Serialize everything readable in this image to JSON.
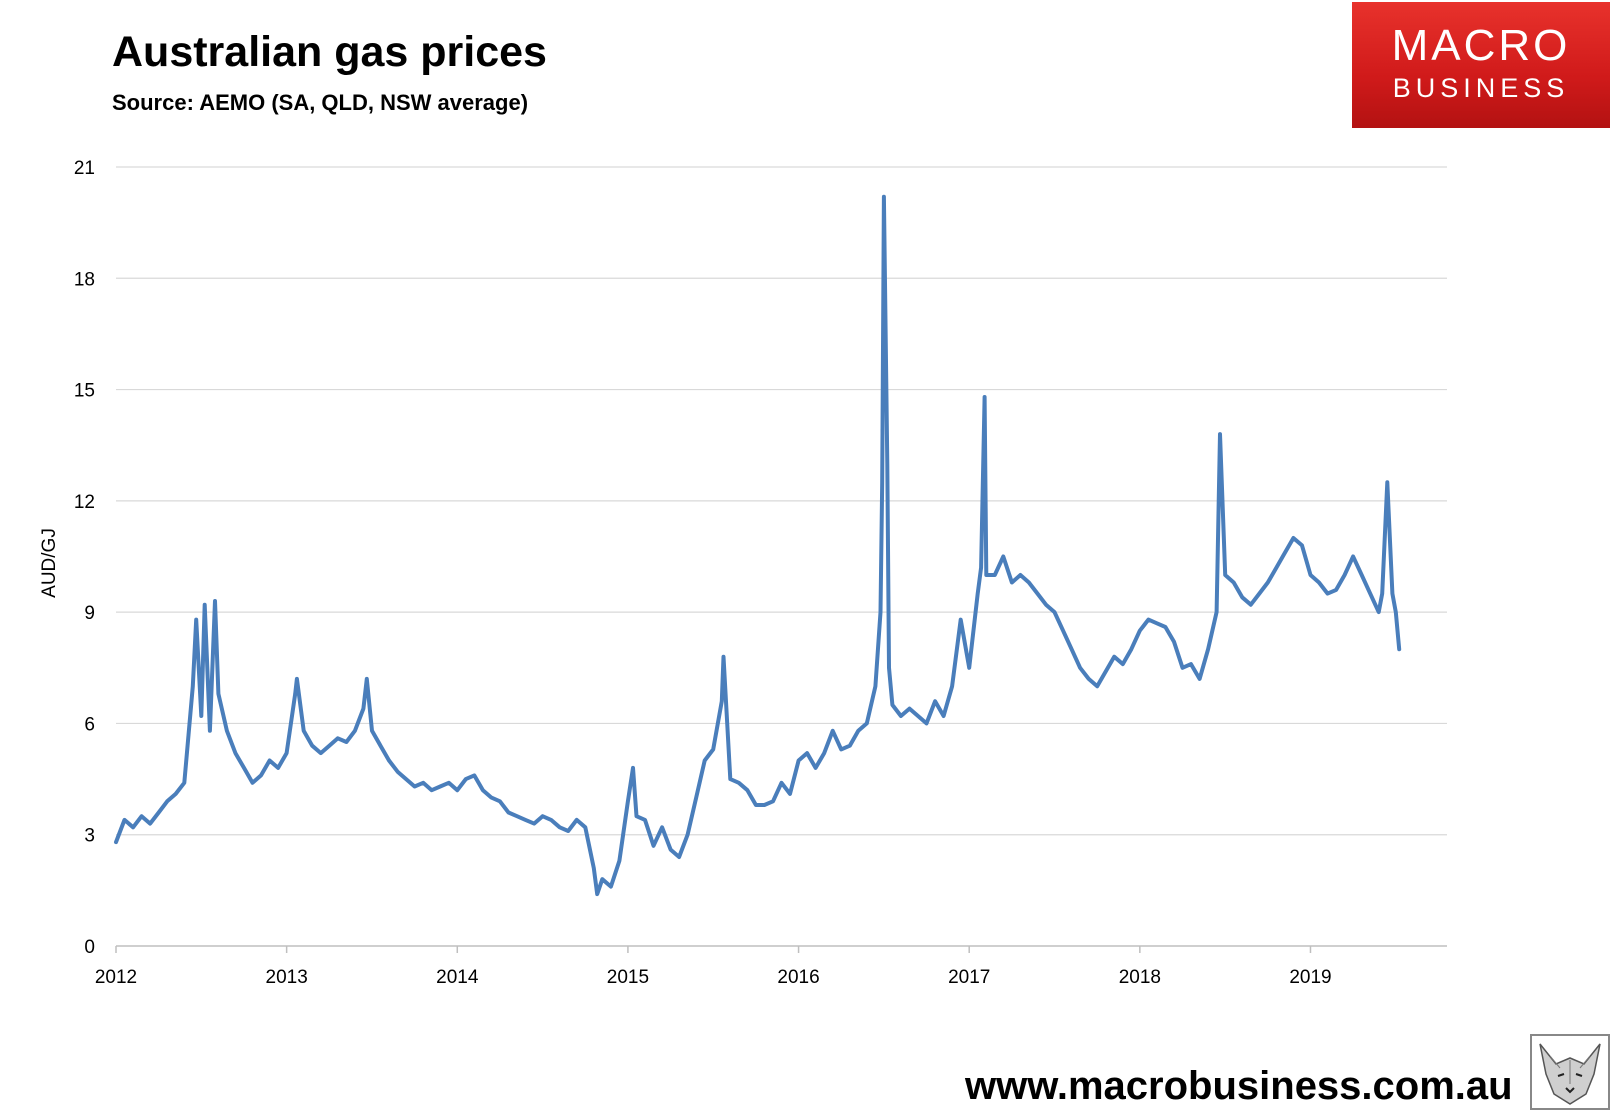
{
  "title": "Australian gas prices",
  "subtitle": "Source: AEMO (SA, QLD, NSW average)",
  "brand": {
    "line1": "MACRO",
    "line2": "BUSINESS",
    "color": "#d42020"
  },
  "website": "www.macrobusiness.com.au",
  "chart_data": {
    "type": "line",
    "title": "Australian gas prices",
    "xlabel": "",
    "ylabel": "AUD/GJ",
    "ylim": [
      0,
      21
    ],
    "xlim": [
      2012,
      2019.8
    ],
    "yticks": [
      0,
      3,
      6,
      9,
      12,
      15,
      18,
      21
    ],
    "xticks": [
      "2012",
      "2013",
      "2014",
      "2015",
      "2016",
      "2017",
      "2018",
      "2019"
    ],
    "grid": true,
    "legend": "none",
    "line_color": "#4a7ebb",
    "series": [
      {
        "x": [
          2012.0,
          2012.05,
          2012.1,
          2012.15,
          2012.2,
          2012.25,
          2012.3,
          2012.35,
          2012.4,
          2012.45,
          2012.47,
          2012.5,
          2012.52,
          2012.55,
          2012.58,
          2012.6,
          2012.65,
          2012.7,
          2012.75,
          2012.8,
          2012.85,
          2012.9,
          2012.95,
          2013.0,
          2013.05,
          2013.06,
          2013.1,
          2013.15,
          2013.2,
          2013.25,
          2013.3,
          2013.35,
          2013.4,
          2013.45,
          2013.47,
          2013.5,
          2013.55,
          2013.6,
          2013.65,
          2013.7,
          2013.75,
          2013.8,
          2013.85,
          2013.9,
          2013.95,
          2014.0,
          2014.05,
          2014.1,
          2014.15,
          2014.2,
          2014.25,
          2014.3,
          2014.35,
          2014.4,
          2014.45,
          2014.5,
          2014.55,
          2014.6,
          2014.65,
          2014.7,
          2014.75,
          2014.8,
          2014.82,
          2014.85,
          2014.9,
          2014.95,
          2015.0,
          2015.03,
          2015.05,
          2015.1,
          2015.15,
          2015.2,
          2015.25,
          2015.3,
          2015.35,
          2015.4,
          2015.45,
          2015.5,
          2015.55,
          2015.56,
          2015.6,
          2015.65,
          2015.7,
          2015.75,
          2015.8,
          2015.85,
          2015.9,
          2015.95,
          2016.0,
          2016.05,
          2016.1,
          2016.15,
          2016.2,
          2016.25,
          2016.3,
          2016.35,
          2016.4,
          2016.45,
          2016.48,
          2016.49,
          2016.5,
          2016.52,
          2016.53,
          2016.55,
          2016.6,
          2016.65,
          2016.7,
          2016.75,
          2016.8,
          2016.85,
          2016.9,
          2016.95,
          2017.0,
          2017.05,
          2017.07,
          2017.09,
          2017.1,
          2017.15,
          2017.2,
          2017.25,
          2017.3,
          2017.35,
          2017.4,
          2017.45,
          2017.5,
          2017.55,
          2017.6,
          2017.65,
          2017.7,
          2017.75,
          2017.8,
          2017.85,
          2017.9,
          2017.95,
          2018.0,
          2018.05,
          2018.1,
          2018.15,
          2018.2,
          2018.25,
          2018.3,
          2018.35,
          2018.4,
          2018.45,
          2018.47,
          2018.5,
          2018.55,
          2018.6,
          2018.65,
          2018.7,
          2018.75,
          2018.8,
          2018.85,
          2018.9,
          2018.95,
          2019.0,
          2019.05,
          2019.1,
          2019.15,
          2019.2,
          2019.25,
          2019.3,
          2019.35,
          2019.4,
          2019.42,
          2019.45,
          2019.48,
          2019.5,
          2019.52
        ],
        "y": [
          2.8,
          3.4,
          3.2,
          3.5,
          3.3,
          3.6,
          3.9,
          4.1,
          4.4,
          7.0,
          8.8,
          6.2,
          9.2,
          5.8,
          9.3,
          6.8,
          5.8,
          5.2,
          4.8,
          4.4,
          4.6,
          5.0,
          4.8,
          5.2,
          6.8,
          7.2,
          5.8,
          5.4,
          5.2,
          5.4,
          5.6,
          5.5,
          5.8,
          6.4,
          7.2,
          5.8,
          5.4,
          5.0,
          4.7,
          4.5,
          4.3,
          4.4,
          4.2,
          4.3,
          4.4,
          4.2,
          4.5,
          4.6,
          4.2,
          4.0,
          3.9,
          3.6,
          3.5,
          3.4,
          3.3,
          3.5,
          3.4,
          3.2,
          3.1,
          3.4,
          3.2,
          2.1,
          1.4,
          1.8,
          1.6,
          2.3,
          3.9,
          4.8,
          3.5,
          3.4,
          2.7,
          3.2,
          2.6,
          2.4,
          3.0,
          4.0,
          5.0,
          5.3,
          6.6,
          7.8,
          4.5,
          4.4,
          4.2,
          3.8,
          3.8,
          3.9,
          4.4,
          4.1,
          5.0,
          5.2,
          4.8,
          5.2,
          5.8,
          5.3,
          5.4,
          5.8,
          6.0,
          7.0,
          9.0,
          12.5,
          20.2,
          13.0,
          7.5,
          6.5,
          6.2,
          6.4,
          6.2,
          6.0,
          6.6,
          6.2,
          7.0,
          8.8,
          7.5,
          9.5,
          10.2,
          14.8,
          10.0,
          10.0,
          10.5,
          9.8,
          10.0,
          9.8,
          9.5,
          9.2,
          9.0,
          8.5,
          8.0,
          7.5,
          7.2,
          7.0,
          7.4,
          7.8,
          7.6,
          8.0,
          8.5,
          8.8,
          8.7,
          8.6,
          8.2,
          7.5,
          7.6,
          7.2,
          8.0,
          9.0,
          13.8,
          10.0,
          9.8,
          9.4,
          9.2,
          9.5,
          9.8,
          10.2,
          10.6,
          11.0,
          10.8,
          10.0,
          9.8,
          9.5,
          9.6,
          10.0,
          10.5,
          10.0,
          9.5,
          9.0,
          9.5,
          12.5,
          9.5,
          9.0,
          8.0
        ]
      }
    ]
  }
}
